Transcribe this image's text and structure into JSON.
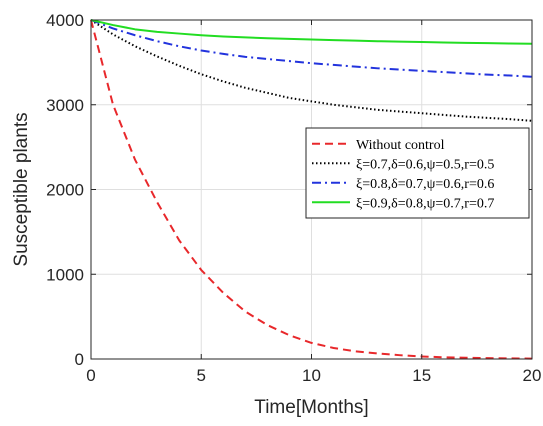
{
  "chart_data": {
    "type": "line",
    "xlabel": "Time[Months]",
    "ylabel": "Susceptible plants",
    "xlim": [
      0,
      20
    ],
    "ylim": [
      0,
      4000
    ],
    "xticks": [
      0,
      5,
      10,
      15,
      20
    ],
    "yticks": [
      0,
      1000,
      2000,
      3000,
      4000
    ],
    "grid": true,
    "legend_position": "right",
    "x": [
      0,
      1,
      2,
      3,
      4,
      5,
      6,
      7,
      8,
      9,
      10,
      11,
      12,
      13,
      14,
      15,
      16,
      17,
      18,
      19,
      20
    ],
    "series": [
      {
        "name": "Without control",
        "color": "#e8282b",
        "dash": "dashed",
        "values": [
          4000,
          3000,
          2350,
          1850,
          1400,
          1050,
          780,
          560,
          400,
          280,
          190,
          130,
          90,
          65,
          45,
          30,
          20,
          15,
          10,
          7,
          5
        ]
      },
      {
        "name": "ξ=0.7,δ=0.6,ψ=0.5,r=0.5",
        "color": "#000000",
        "dash": "dotted",
        "values": [
          4000,
          3830,
          3690,
          3570,
          3460,
          3360,
          3275,
          3200,
          3140,
          3080,
          3040,
          3000,
          2970,
          2940,
          2920,
          2900,
          2880,
          2860,
          2845,
          2830,
          2810
        ]
      },
      {
        "name": "ξ=0.8,δ=0.7,ψ=0.6,r=0.6",
        "color": "#2233dd",
        "dash": "dashdot",
        "values": [
          4000,
          3900,
          3820,
          3750,
          3690,
          3640,
          3600,
          3565,
          3540,
          3515,
          3490,
          3470,
          3450,
          3430,
          3415,
          3400,
          3385,
          3370,
          3355,
          3345,
          3330
        ]
      },
      {
        "name": "ξ=0.9,δ=0.8,ψ=0.7,r=0.7",
        "color": "#22dd22",
        "dash": "solid",
        "values": [
          4000,
          3940,
          3890,
          3860,
          3840,
          3820,
          3805,
          3795,
          3785,
          3777,
          3770,
          3763,
          3757,
          3750,
          3745,
          3740,
          3735,
          3730,
          3727,
          3723,
          3720
        ]
      }
    ]
  }
}
